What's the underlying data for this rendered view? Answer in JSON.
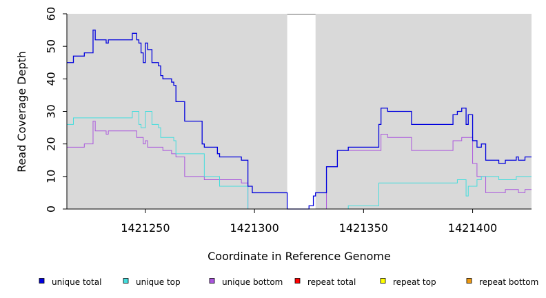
{
  "chart_data": {
    "type": "line",
    "title": "",
    "xlabel": "Coordinate in Reference Genome",
    "ylabel": "Read Coverage Depth",
    "xlim": [
      1421214,
      1421427
    ],
    "ylim": [
      0,
      60
    ],
    "x_ticks": [
      1421250,
      1421300,
      1421350,
      1421400
    ],
    "x_tick_labels": [
      "1421250",
      "1421300",
      "1421350",
      "1421400"
    ],
    "y_ticks": [
      0,
      10,
      20,
      30,
      40,
      50,
      60
    ],
    "y_tick_labels": [
      "0",
      "10",
      "20",
      "30",
      "40",
      "50",
      "60"
    ],
    "shaded_regions": [
      [
        1421214,
        1421315
      ],
      [
        1421328,
        1421427
      ]
    ],
    "series": [
      {
        "name": "unique total",
        "color": "#0000dd",
        "points": [
          [
            1421214,
            45
          ],
          [
            1421217,
            47
          ],
          [
            1421222,
            48
          ],
          [
            1421226,
            55
          ],
          [
            1421227,
            52
          ],
          [
            1421232,
            51
          ],
          [
            1421233,
            52
          ],
          [
            1421244,
            54
          ],
          [
            1421246,
            52
          ],
          [
            1421247,
            51
          ],
          [
            1421248,
            48
          ],
          [
            1421249,
            45
          ],
          [
            1421250,
            51
          ],
          [
            1421251,
            49
          ],
          [
            1421253,
            45
          ],
          [
            1421256,
            44
          ],
          [
            1421257,
            41
          ],
          [
            1421258,
            40
          ],
          [
            1421262,
            39
          ],
          [
            1421263,
            38
          ],
          [
            1421264,
            33
          ],
          [
            1421268,
            27
          ],
          [
            1421276,
            20
          ],
          [
            1421277,
            19
          ],
          [
            1421283,
            17
          ],
          [
            1421284,
            16
          ],
          [
            1421294,
            15
          ],
          [
            1421297,
            7
          ],
          [
            1421299,
            5
          ],
          [
            1421315,
            0
          ],
          [
            1421325,
            1
          ],
          [
            1421327,
            4
          ],
          [
            1421328,
            5
          ],
          [
            1421333,
            13
          ],
          [
            1421338,
            18
          ],
          [
            1421343,
            19
          ],
          [
            1421357,
            26
          ],
          [
            1421358,
            31
          ],
          [
            1421361,
            30
          ],
          [
            1421372,
            26
          ],
          [
            1421391,
            29
          ],
          [
            1421393,
            30
          ],
          [
            1421395,
            31
          ],
          [
            1421397,
            26
          ],
          [
            1421398,
            29
          ],
          [
            1421400,
            21
          ],
          [
            1421402,
            19
          ],
          [
            1421404,
            20
          ],
          [
            1421406,
            15
          ],
          [
            1421412,
            14
          ],
          [
            1421415,
            15
          ],
          [
            1421420,
            16
          ],
          [
            1421421,
            15
          ],
          [
            1421424,
            16
          ],
          [
            1421427,
            16
          ]
        ]
      },
      {
        "name": "unique top",
        "color": "#44dddd",
        "points": [
          [
            1421214,
            26
          ],
          [
            1421217,
            28
          ],
          [
            1421244,
            30
          ],
          [
            1421247,
            26
          ],
          [
            1421248,
            25
          ],
          [
            1421250,
            30
          ],
          [
            1421253,
            26
          ],
          [
            1421256,
            25
          ],
          [
            1421257,
            22
          ],
          [
            1421263,
            21
          ],
          [
            1421264,
            17
          ],
          [
            1421276,
            17
          ],
          [
            1421277,
            10
          ],
          [
            1421283,
            10
          ],
          [
            1421284,
            7
          ],
          [
            1421296,
            7
          ],
          [
            1421297,
            0
          ],
          [
            1421315,
            0
          ],
          [
            1421343,
            1
          ],
          [
            1421357,
            8
          ],
          [
            1421393,
            9
          ],
          [
            1421397,
            4
          ],
          [
            1421398,
            7
          ],
          [
            1421402,
            9
          ],
          [
            1421404,
            10
          ],
          [
            1421412,
            9
          ],
          [
            1421420,
            10
          ],
          [
            1421427,
            10
          ]
        ]
      },
      {
        "name": "unique bottom",
        "color": "#aa55dd",
        "points": [
          [
            1421214,
            19
          ],
          [
            1421222,
            20
          ],
          [
            1421226,
            27
          ],
          [
            1421227,
            24
          ],
          [
            1421232,
            23
          ],
          [
            1421233,
            24
          ],
          [
            1421246,
            22
          ],
          [
            1421249,
            20
          ],
          [
            1421250,
            21
          ],
          [
            1421251,
            19
          ],
          [
            1421258,
            18
          ],
          [
            1421262,
            17
          ],
          [
            1421264,
            16
          ],
          [
            1421268,
            10
          ],
          [
            1421276,
            10
          ],
          [
            1421277,
            9
          ],
          [
            1421294,
            8
          ],
          [
            1421297,
            0
          ],
          [
            1421315,
            0
          ],
          [
            1421328,
            0
          ],
          [
            1421333,
            13
          ],
          [
            1421338,
            18
          ],
          [
            1421357,
            18
          ],
          [
            1421358,
            23
          ],
          [
            1421361,
            22
          ],
          [
            1421372,
            18
          ],
          [
            1421391,
            21
          ],
          [
            1421395,
            22
          ],
          [
            1421400,
            14
          ],
          [
            1421402,
            10
          ],
          [
            1421406,
            5
          ],
          [
            1421415,
            6
          ],
          [
            1421421,
            5
          ],
          [
            1421424,
            6
          ],
          [
            1421427,
            6
          ]
        ]
      },
      {
        "name": "repeat total",
        "color": "#ff0000",
        "points": [
          [
            1421214,
            0
          ],
          [
            1421427,
            0
          ]
        ]
      },
      {
        "name": "repeat top",
        "color": "#ffff00",
        "points": [
          [
            1421214,
            0
          ],
          [
            1421427,
            0
          ]
        ]
      },
      {
        "name": "repeat bottom",
        "color": "#ee9911",
        "points": [
          [
            1421214,
            0
          ],
          [
            1421427,
            0
          ]
        ]
      }
    ],
    "legend": [
      {
        "label": "unique total",
        "color": "#0000dd"
      },
      {
        "label": "unique top",
        "color": "#44dddd"
      },
      {
        "label": "unique bottom",
        "color": "#aa55dd"
      },
      {
        "label": "repeat total",
        "color": "#ff0000"
      },
      {
        "label": "repeat top",
        "color": "#ffff00"
      },
      {
        "label": "repeat bottom",
        "color": "#ee9911"
      }
    ],
    "legend_position": "bottom"
  },
  "colors": {
    "shade": "#d9d9d9",
    "axis": "#000000",
    "gap_line": "#666666"
  }
}
